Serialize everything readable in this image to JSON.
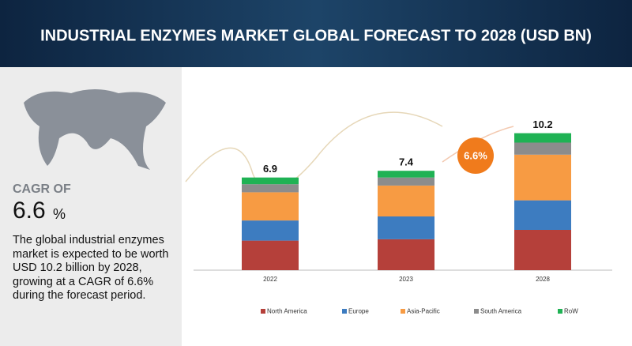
{
  "chart_data": {
    "type": "stacked_bar",
    "title": "INDUSTRIAL ENZYMES MARKET GLOBAL FORECAST TO 2028 (USD BN)",
    "categories": [
      "2022",
      "2023",
      "2028"
    ],
    "series": [
      {
        "name": "North America",
        "color": "#b5403a",
        "values": [
          2.2,
          2.3,
          3.0
        ]
      },
      {
        "name": "Europe",
        "color": "#3d7cc0",
        "values": [
          1.5,
          1.7,
          2.2
        ]
      },
      {
        "name": "Asia-Pacific",
        "color": "#f79b43",
        "values": [
          2.1,
          2.3,
          3.4
        ]
      },
      {
        "name": "South America",
        "color": "#8c8c8c",
        "values": [
          0.6,
          0.6,
          0.9
        ]
      },
      {
        "name": "RoW",
        "color": "#1fb254",
        "values": [
          0.5,
          0.5,
          0.7
        ]
      }
    ],
    "totals": [
      6.9,
      7.4,
      10.2
    ],
    "cagr_bubble": {
      "value": 6.6,
      "label": "6.6%"
    },
    "side_panel": {
      "cagr_heading": "CAGR OF",
      "cagr_number": "6.6",
      "cagr_unit": "%",
      "description": "The global industrial enzymes market is expected to be worth USD 10.2 billion by 2028, growing at a CAGR of 6.6% during the forecast period."
    }
  }
}
